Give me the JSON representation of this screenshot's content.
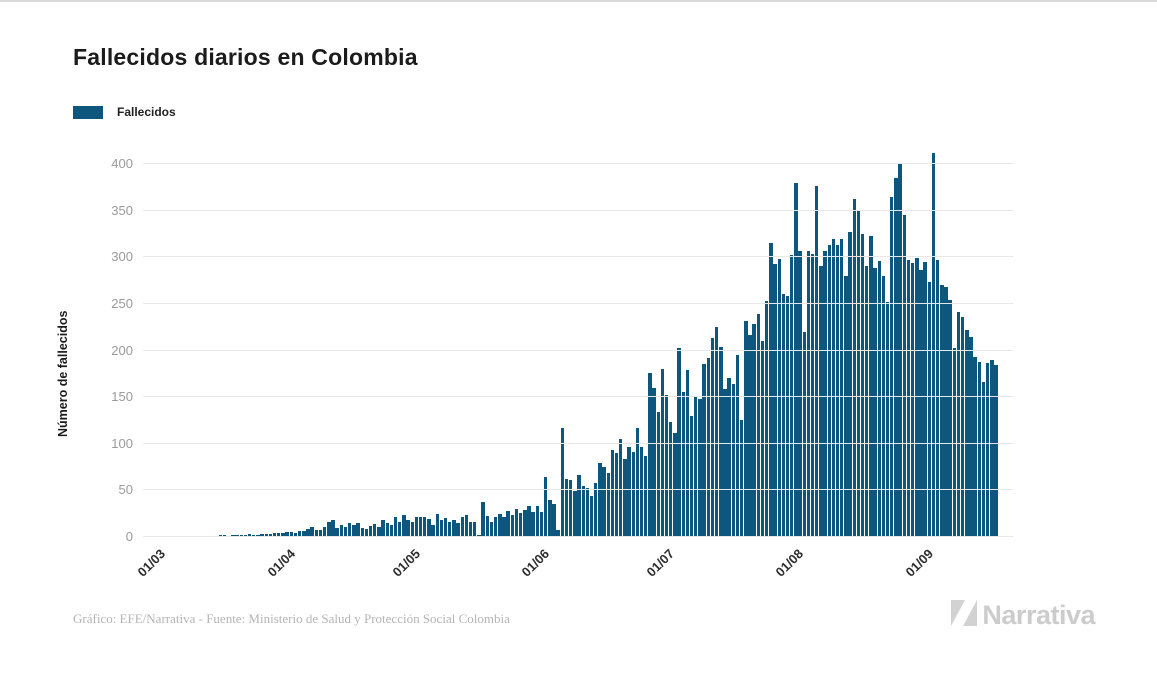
{
  "page": {
    "title": "Fallecidos diarios en Colombia"
  },
  "legend": {
    "label": "Fallecidos",
    "swatch_color": "#0d567e"
  },
  "footer": {
    "credit": "Gráfico: EFE/Narrativa - Fuente: Ministerio de Salud y Protección Social Colombia",
    "logo_text": "Narrativa"
  },
  "chart_data": {
    "type": "bar",
    "title": "Fallecidos diarios en Colombia",
    "series_name": "Fallecidos",
    "xlabel": "",
    "ylabel": "Número de fallecidos",
    "ylim": [
      0,
      400
    ],
    "y_ticks": [
      0,
      50,
      100,
      150,
      200,
      250,
      300,
      350,
      400
    ],
    "grid": "horizontal",
    "legend_position": "top-left",
    "bar_color": "#0d567e",
    "x_start_label": "01/03",
    "x_tick_labels": [
      "01/03",
      "01/04",
      "01/05",
      "01/06",
      "01/07",
      "01/08",
      "01/09"
    ],
    "x_tick_day_indices": [
      0,
      31,
      61,
      92,
      122,
      153,
      184
    ],
    "values": [
      0,
      0,
      0,
      0,
      0,
      0,
      0,
      1,
      0,
      1,
      1,
      1,
      1,
      1,
      1,
      1,
      2,
      2,
      1,
      2,
      2,
      2,
      2,
      3,
      2,
      2,
      3,
      3,
      3,
      4,
      4,
      4,
      5,
      5,
      4,
      6,
      6,
      9,
      11,
      8,
      8,
      11,
      16,
      18,
      10,
      13,
      11,
      15,
      13,
      15,
      10,
      9,
      12,
      14,
      11,
      18,
      15,
      13,
      22,
      16,
      24,
      18,
      16,
      21,
      22,
      22,
      19,
      13,
      25,
      18,
      20,
      16,
      18,
      15,
      22,
      24,
      16,
      16,
      2,
      38,
      23,
      16,
      21,
      25,
      22,
      28,
      24,
      30,
      26,
      29,
      33,
      27,
      33,
      27,
      64,
      40,
      35,
      8,
      117,
      62,
      61,
      49,
      66,
      55,
      53,
      44,
      58,
      79,
      75,
      69,
      93,
      90,
      105,
      84,
      97,
      91,
      117,
      97,
      87,
      176,
      160,
      134,
      180,
      152,
      123,
      112,
      203,
      156,
      179,
      130,
      150,
      148,
      186,
      192,
      213,
      225,
      204,
      159,
      171,
      164,
      195,
      125,
      232,
      217,
      228,
      239,
      210,
      253,
      315,
      293,
      298,
      261,
      258,
      302,
      380,
      307,
      220,
      307,
      304,
      376,
      291,
      307,
      313,
      320,
      313,
      320,
      280,
      327,
      362,
      351,
      325,
      291,
      323,
      288,
      296,
      280,
      252,
      365,
      385,
      400,
      345,
      297,
      294,
      299,
      286,
      295,
      273,
      412,
      297,
      270,
      268,
      254,
      203,
      241,
      236,
      222,
      215,
      193,
      188,
      166,
      187,
      190,
      185
    ]
  }
}
